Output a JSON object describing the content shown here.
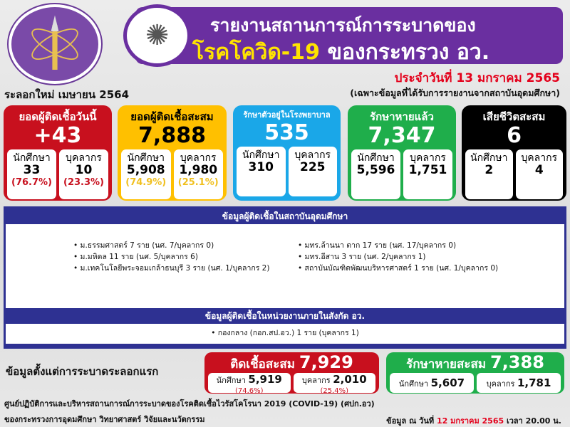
{
  "header": {
    "title_line1": "รายงานสถานการณ์การระบาดของ",
    "title_line2_highlight": "โรคโควิด-19",
    "title_line2_rest": "ของกระทรวง อว.",
    "date": "ประจำวันที่ 13 มกราคม 2565",
    "note": "(เฉพาะข้อมูลที่ได้รับการรายงานจากสถาบันอุดมศึกษา)",
    "wave": "ระลอกใหม่ เมษายน 2564"
  },
  "cards": [
    {
      "title": "ยอดผู้ติดเชื้อวันนี้",
      "value": "+43",
      "student_label": "นักศึกษา",
      "student": "33",
      "student_pct": "(76.7%)",
      "staff_label": "บุคลากร",
      "staff": "10",
      "staff_pct": "(23.3%)",
      "color": "#c8101e"
    },
    {
      "title": "ยอดผู้ติดเชื้อสะสม",
      "value": "7,888",
      "student_label": "นักศึกษา",
      "student": "5,908",
      "student_pct": "(74.9%)",
      "staff_label": "บุคลากร",
      "staff": "1,980",
      "staff_pct": "(25.1%)",
      "color": "#ffc000"
    },
    {
      "title": "รักษาตัวอยู่ในโรงพยาบาล",
      "value": "535",
      "student_label": "นักศึกษา",
      "student": "310",
      "staff_label": "บุคลากร",
      "staff": "225",
      "color": "#1aa7e8"
    },
    {
      "title": "รักษาหายแล้ว",
      "value": "7,347",
      "student_label": "นักศึกษา",
      "student": "5,596",
      "staff_label": "บุคลากร",
      "staff": "1,751",
      "color": "#1fae4b"
    },
    {
      "title": "เสียชีวิตสะสม",
      "value": "6",
      "student_label": "นักศึกษา",
      "student": "2",
      "staff_label": "บุคลากร",
      "staff": "4",
      "color": "#000000"
    }
  ],
  "institutions": {
    "heading": "ข้อมูลผู้ติดเชื้อในสถาบันอุดมศึกษา",
    "left": [
      "ม.ธรรมศาสตร์ 7 ราย (นศ. 7/บุคลากร 0)",
      "ม.มหิดล 11 ราย (นศ. 5/บุคลากร 6)",
      "ม.เทคโนโลยีพระจอมเกล้าธนบุรี 3 ราย (นศ. 1/บุคลากร 2)"
    ],
    "right": [
      "มทร.ล้านนา ตาก 17 ราย (นศ. 17/บุคลากร 0)",
      "มทร.อีสาน 3 ราย (นศ. 2/บุคลากร 1)",
      "สถาบันบัณฑิตพัฒนบริหารศาสตร์ 1 ราย (นศ. 1/บุคลากร 0)"
    ]
  },
  "agencies": {
    "heading": "ข้อมูลผู้ติดเชื้อในหน่วยงานภายในสังกัด อว.",
    "items": [
      "กองกลาง (กอก.สป.อว.) 1 ราย (บุคลากร 1)"
    ]
  },
  "since_first": {
    "label": "ข้อมูลตั้งแต่การระบาดระลอกแรก",
    "infected": {
      "title": "ติดเชื้อสะสม",
      "value": "7,929",
      "student_label": "นักศึกษา",
      "student": "5,919",
      "student_pct": "(74.6%)",
      "staff_label": "บุคลากร",
      "staff": "2,010",
      "staff_pct": "(25.4%)"
    },
    "recovered": {
      "title": "รักษาหายสะสม",
      "value": "7,388",
      "student_label": "นักศึกษา",
      "student": "5,607",
      "staff_label": "บุคลากร",
      "staff": "1,781"
    }
  },
  "footer": {
    "line1": "ศูนย์ปฏิบัติการและบริหารสถานการณ์การระบาดของโรคติดเชื้อไวรัสโคโรนา 2019 (COVID-19) (ศปก.อว)",
    "line2": "ของกระทรวงการอุดมศึกษา วิทยาศาสตร์ วิจัยและนวัตกรรม",
    "asof_prefix": "ข้อมูล ณ วันที่",
    "asof_date": "12 มกราคม 2565",
    "asof_suffix": "เวลา 20.00 น."
  }
}
